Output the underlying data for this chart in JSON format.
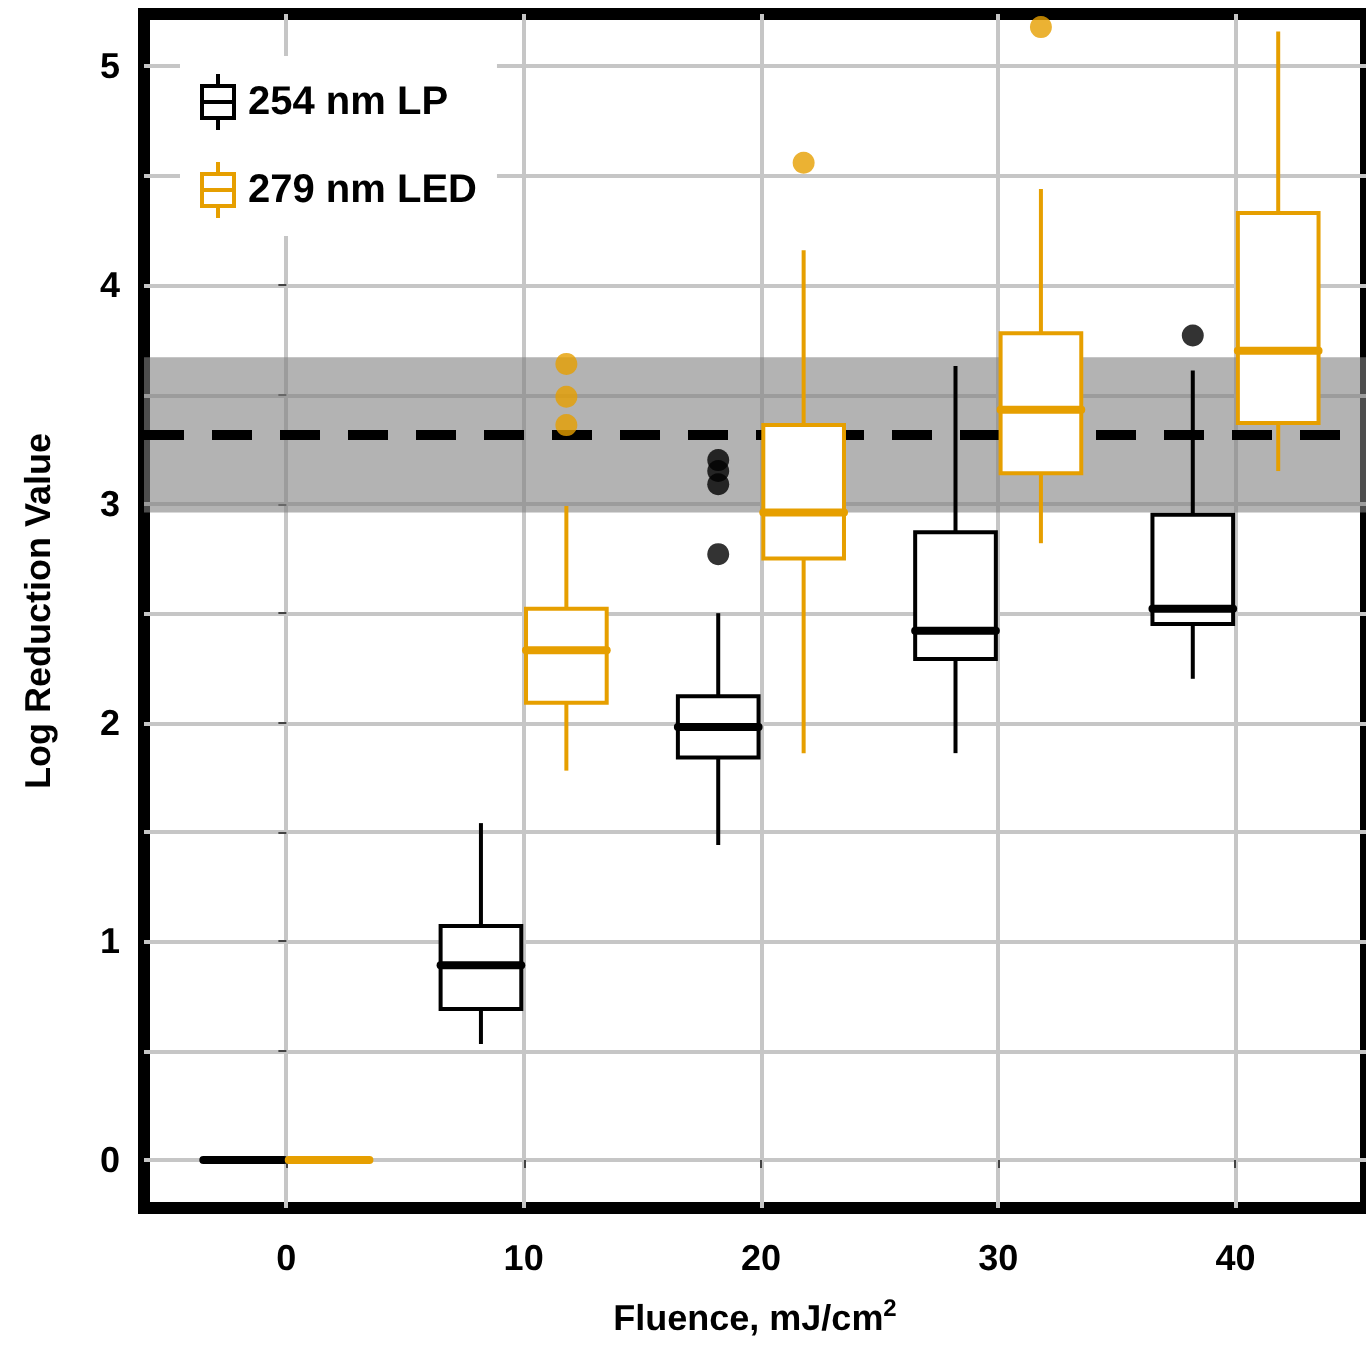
{
  "chart_data": {
    "type": "box",
    "xlabel": "Fluence, mJ/cm$^{2}$",
    "ylabel": "Log Reduction Value",
    "x": [
      0,
      10,
      20,
      30,
      40
    ],
    "xlim": [
      -6,
      45.5
    ],
    "xticks": [
      0,
      10,
      20,
      30,
      40
    ],
    "ylim": [
      -0.22,
      5.24
    ],
    "yticks": [
      0,
      {
        "value": 0.5,
        "label": null
      },
      1,
      {
        "value": 1.5,
        "label": null
      },
      2,
      {
        "value": 2.5,
        "label": null
      },
      3,
      {
        "value": 3.5,
        "label": null
      },
      4,
      {
        "value": 4.5,
        "label": null
      },
      5
    ],
    "grid": true,
    "legend": "top left",
    "series": [
      {
        "name": "254 nm LP",
        "color": "#000000",
        "boxes": [
          {
            "low": 0,
            "q1": 0,
            "median": 0,
            "q3": 0,
            "high": 0
          },
          {
            "low": 0.53,
            "q1": 0.69,
            "median": 0.89,
            "q3": 1.07,
            "high": 1.54
          },
          {
            "low": 1.44,
            "q1": 1.84,
            "median": 1.98,
            "q3": 2.12,
            "high": 2.5,
            "outliers": [
              3.2,
              3.15,
              3.09,
              2.77
            ]
          },
          {
            "low": 1.86,
            "q1": 2.29,
            "median": 2.42,
            "q3": 2.87,
            "high": 3.63
          },
          {
            "low": 2.2,
            "q1": 2.45,
            "median": 2.52,
            "q3": 2.95,
            "high": 3.61,
            "outliers": [
              3.77
            ]
          }
        ]
      },
      {
        "name": "279 nm LED",
        "color": "#e69f00",
        "boxes": [
          {
            "low": 0,
            "q1": 0,
            "median": 0,
            "q3": 0,
            "high": 0
          },
          {
            "low": 1.78,
            "q1": 2.09,
            "median": 2.33,
            "q3": 2.52,
            "high": 2.99,
            "outliers": [
              3.64,
              3.49,
              3.36
            ]
          },
          {
            "low": 1.86,
            "q1": 2.75,
            "median": 2.96,
            "q3": 3.36,
            "high": 4.16,
            "outliers": [
              4.56
            ]
          },
          {
            "low": 2.82,
            "q1": 3.14,
            "median": 3.43,
            "q3": 3.78,
            "high": 4.44,
            "outliers": [
              5.18
            ]
          },
          {
            "low": 3.15,
            "q1": 3.37,
            "median": 3.7,
            "q3": 4.33,
            "high": 5.16
          }
        ]
      }
    ],
    "ref_lines": [
      {
        "axis": "y",
        "value": 3.32,
        "line_style": "dashed",
        "color": "#000000"
      }
    ],
    "bands": [
      {
        "axis": "y",
        "from": 2.96,
        "to": 3.67,
        "color": "#808080"
      }
    ]
  }
}
